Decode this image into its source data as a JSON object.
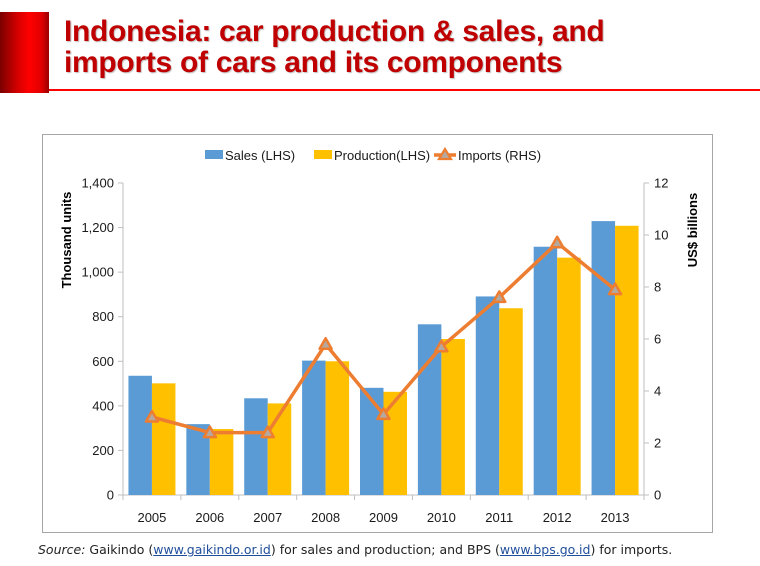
{
  "slide": {
    "title_line1": "Indonesia: car production & sales, and",
    "title_line2": "imports of cars and its components",
    "accent_color": "#ff0000",
    "title_color": "#c00000"
  },
  "source": {
    "prefix": "Source:",
    "text1": " Gaikindo (",
    "link1": "www.gaikindo.or.id",
    "text2": ") for sales and production; and BPS (",
    "link2": "www.bps.go.id",
    "text3": ") for imports."
  },
  "chart_data": {
    "type": "bar",
    "title": "",
    "categories": [
      "2005",
      "2006",
      "2007",
      "2008",
      "2009",
      "2010",
      "2011",
      "2012",
      "2013"
    ],
    "series": [
      {
        "name": "Sales (LHS)",
        "type": "bar",
        "axis": "left",
        "color": "#5b9bd5",
        "values": [
          535,
          318,
          434,
          603,
          481,
          766,
          891,
          1114,
          1229
        ]
      },
      {
        "name": "Production(LHS)",
        "type": "bar",
        "axis": "left",
        "color": "#ffc000",
        "values": [
          501,
          296,
          411,
          600,
          463,
          700,
          838,
          1065,
          1208
        ]
      },
      {
        "name": "Imports (RHS)",
        "type": "line",
        "marker": "triangle",
        "axis": "right",
        "color": "#ed7d31",
        "values": [
          3.0,
          2.4,
          2.4,
          5.8,
          3.1,
          5.7,
          7.6,
          9.7,
          7.9
        ]
      }
    ],
    "ylabel": "Thousand units",
    "y2label": "US$ billions",
    "xlabel": "",
    "ylim": [
      0,
      1400
    ],
    "y2lim": [
      0,
      12
    ],
    "yticks": [
      "0",
      "200",
      "400",
      "600",
      "800",
      "1,000",
      "1,200",
      "1,400"
    ],
    "y2ticks": [
      "0",
      "2",
      "4",
      "6",
      "8",
      "10",
      "12"
    ],
    "grid": false,
    "legend": "top-center"
  }
}
